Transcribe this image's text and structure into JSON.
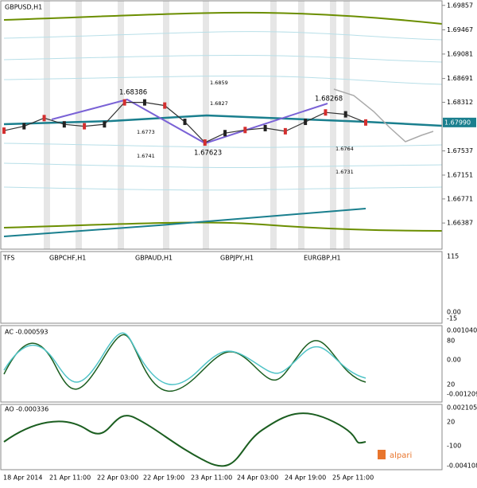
{
  "main": {
    "title": "GBPUSD,H1",
    "ylim": [
      1.6993,
      1.6597
    ],
    "yticks": [
      1.69857,
      1.69467,
      1.69081,
      1.68691,
      1.68312,
      1.67537,
      1.67151,
      1.66771,
      1.66387
    ],
    "current_price": "1.67990",
    "annotations": [
      "1.68386",
      "1.67623",
      "1.68268",
      "1.6859",
      "1.6827",
      "1.6773",
      "1.6741",
      "1.6764",
      "1.6731"
    ],
    "close": [
      1.6786,
      1.6793,
      1.6806,
      1.6796,
      1.6793,
      1.6796,
      1.6831,
      1.6831,
      1.6826,
      1.68,
      1.6767,
      1.6782,
      1.6787,
      1.679,
      1.6785,
      1.68,
      1.6815,
      1.6812,
      1.6799
    ]
  },
  "tfs": {
    "labels": [
      "TFS",
      "GBPCHF,H1",
      "GBPAUD,H1",
      "GBPJPY,H1",
      "EURGBP,H1"
    ],
    "ticks": [
      "115",
      "0.00",
      "-15"
    ]
  },
  "ac": {
    "title": "AC -0.000593",
    "ticks": [
      "0.001040",
      "80",
      "0.00",
      "20",
      "-0.001209"
    ]
  },
  "ao": {
    "title": "AO -0.000336",
    "ticks": [
      "0.002105",
      "20",
      "-100",
      "-0.004108"
    ]
  },
  "x_labels": [
    "18 Apr 2014",
    "21 Apr 11:00",
    "22 Apr 03:00",
    "22 Apr 19:00",
    "23 Apr 11:00",
    "24 Apr 03:00",
    "24 Apr 19:00",
    "25 Apr 11:00"
  ],
  "logo": "alpari"
}
